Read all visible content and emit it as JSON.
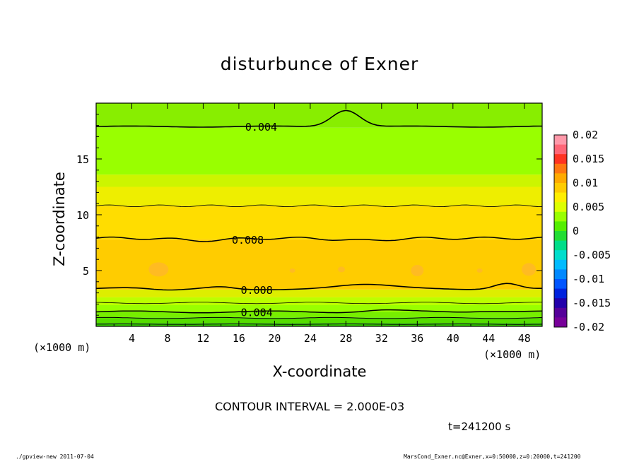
{
  "chart_data": {
    "type": "contour",
    "title": "disturbunce of Exner",
    "xlabel": "X-coordinate",
    "ylabel": "Z-coordinate",
    "x_unit": "(×1000 m)",
    "y_unit": "(×1000 m)",
    "xlim": [
      0,
      50
    ],
    "ylim": [
      0,
      20
    ],
    "x_ticks": [
      "4",
      "8",
      "12",
      "16",
      "20",
      "24",
      "28",
      "32",
      "36",
      "40",
      "44",
      "48"
    ],
    "y_ticks": [
      "5",
      "10",
      "15"
    ],
    "colorbar": {
      "ticks": [
        "0.02",
        "0.015",
        "0.01",
        "0.005",
        "0",
        "-0.005",
        "-0.01",
        "-0.015",
        "-0.02"
      ],
      "range": [
        -0.02,
        0.02
      ]
    },
    "contour_labels": [
      "0.004",
      "0.008",
      "0.008",
      "0.004"
    ],
    "contour_interval_text": "CONTOUR INTERVAL = 2.000E-03",
    "time_text": "t=241200 s",
    "footer_left": "./gpview-new   2011-07-04",
    "footer_right": "MarsCond_Exner.nc@Exner,x=0:50000,z=0:20000,t=241200"
  }
}
